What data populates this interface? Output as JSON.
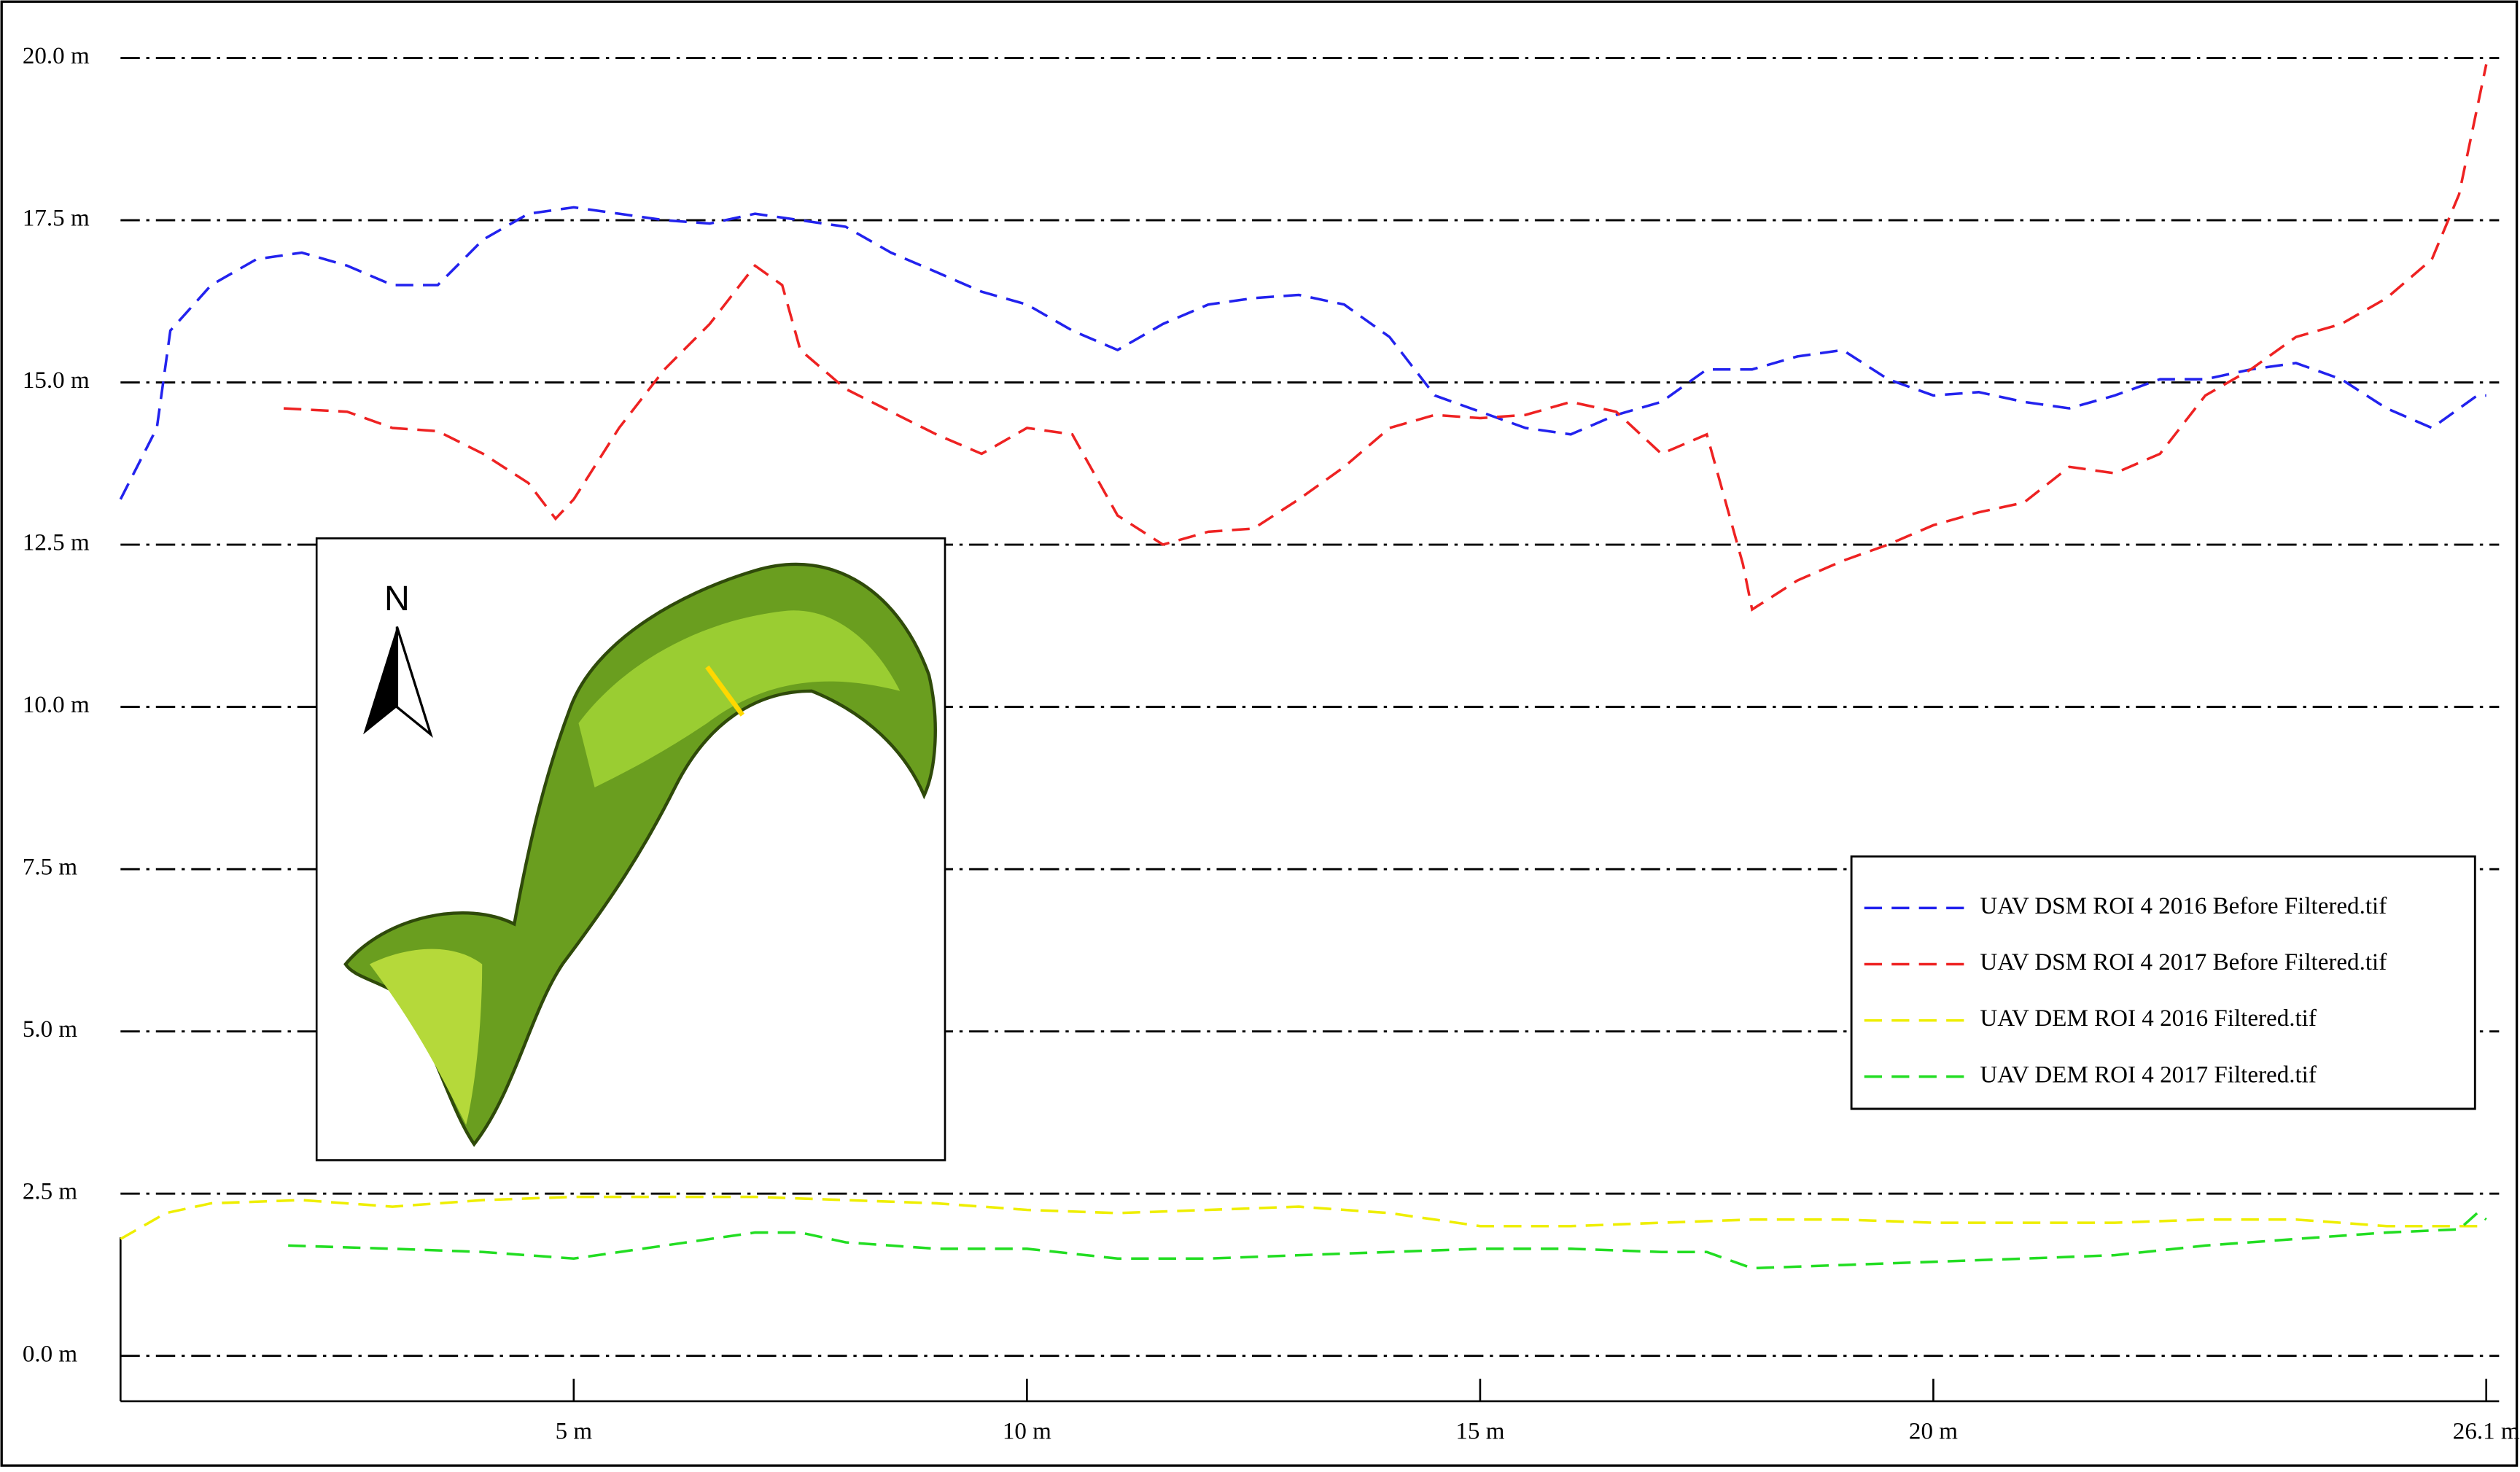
{
  "chart_data": {
    "type": "line",
    "xlim": [
      0,
      26.1
    ],
    "ylim": [
      -0.7,
      20.2
    ],
    "xticks": [
      {
        "value": 5,
        "label": "5 m"
      },
      {
        "value": 10,
        "label": "10 m"
      },
      {
        "value": 15,
        "label": "15 m"
      },
      {
        "value": 20,
        "label": "20 m"
      },
      {
        "value": 26.1,
        "label": "26.1 m"
      }
    ],
    "yticks": [
      {
        "value": 0,
        "label": "0.0 m"
      },
      {
        "value": 2.5,
        "label": "2.5 m"
      },
      {
        "value": 5,
        "label": "5.0 m"
      },
      {
        "value": 7.5,
        "label": "7.5 m"
      },
      {
        "value": 10,
        "label": "10.0 m"
      },
      {
        "value": 12.5,
        "label": "12.5 m"
      },
      {
        "value": 15,
        "label": "15.0 m"
      },
      {
        "value": 17.5,
        "label": "17.5 m"
      },
      {
        "value": 20,
        "label": "20.0 m"
      }
    ],
    "grid": true,
    "line_style": "dashed",
    "legend": "center right",
    "annotations": [
      "N"
    ],
    "series": [
      {
        "name": "UAV DSM ROI 4 2016 Before Filtered.tif",
        "color": "#2222ee",
        "x": [
          0,
          0.4,
          0.55,
          1,
          1.5,
          2,
          2.5,
          3,
          3.5,
          4,
          4.5,
          5,
          5.5,
          6,
          6.5,
          7,
          7.5,
          8,
          8.5,
          9,
          9.5,
          10,
          10.5,
          11,
          11.5,
          12,
          12.5,
          13,
          13.5,
          14,
          14.5,
          15,
          15.5,
          16,
          16.5,
          17,
          17.5,
          18,
          18.5,
          19,
          19.5,
          20,
          20.5,
          21,
          21.5,
          22,
          22.5,
          23,
          23.5,
          24,
          24.5,
          25,
          25.5,
          26,
          26.1
        ],
        "values": [
          13.2,
          14.3,
          15.8,
          16.5,
          16.9,
          17.0,
          16.8,
          16.5,
          16.5,
          17.2,
          17.6,
          17.7,
          17.6,
          17.5,
          17.45,
          17.6,
          17.5,
          17.4,
          17.0,
          16.7,
          16.4,
          16.2,
          15.8,
          15.5,
          15.9,
          16.2,
          16.3,
          16.35,
          16.2,
          15.7,
          14.8,
          14.55,
          14.3,
          14.2,
          14.5,
          14.7,
          15.2,
          15.2,
          15.4,
          15.5,
          15.05,
          14.8,
          14.85,
          14.7,
          14.6,
          14.8,
          15.05,
          15.05,
          15.2,
          15.3,
          15.05,
          14.6,
          14.3,
          14.8,
          14.8
        ]
      },
      {
        "name": "UAV DSM ROI 4 2017 Before Filtered.tif",
        "color": "#ee2222",
        "x": [
          1.8,
          2.5,
          3,
          3.5,
          4,
          4.5,
          4.8,
          5,
          5.5,
          6,
          6.5,
          7,
          7.3,
          7.5,
          8,
          8.5,
          9,
          9.5,
          10,
          10.5,
          11,
          11.5,
          12,
          12.5,
          13,
          13.5,
          14,
          14.5,
          15,
          15.5,
          16,
          16.5,
          17,
          17.5,
          17.9,
          18,
          18.5,
          19,
          19.5,
          20,
          20.5,
          21,
          21.5,
          22,
          22.5,
          23,
          23.5,
          24,
          24.5,
          25,
          25.5,
          25.8,
          26.1
        ],
        "values": [
          14.6,
          14.55,
          14.3,
          14.25,
          13.9,
          13.45,
          12.9,
          13.2,
          14.3,
          15.2,
          15.9,
          16.8,
          16.5,
          15.5,
          14.9,
          14.55,
          14.2,
          13.9,
          14.3,
          14.2,
          12.95,
          12.5,
          12.7,
          12.75,
          13.2,
          13.7,
          14.3,
          14.5,
          14.45,
          14.5,
          14.7,
          14.55,
          13.9,
          14.2,
          12.2,
          11.5,
          11.95,
          12.25,
          12.5,
          12.8,
          13.0,
          13.15,
          13.7,
          13.6,
          13.9,
          14.8,
          15.2,
          15.7,
          15.9,
          16.3,
          16.9,
          17.9,
          19.9
        ]
      },
      {
        "name": "UAV DEM ROI 4 2016 Filtered.tif",
        "color": "#eeee00",
        "x": [
          0,
          0.5,
          1,
          2,
          3,
          4,
          5,
          6,
          7,
          8,
          9,
          10,
          11,
          12,
          13,
          14,
          15,
          16,
          17,
          18,
          19,
          20,
          21,
          22,
          23,
          24,
          25,
          26,
          26.1
        ],
        "values": [
          1.8,
          2.2,
          2.35,
          2.4,
          2.3,
          2.4,
          2.45,
          2.45,
          2.45,
          2.4,
          2.35,
          2.25,
          2.2,
          2.25,
          2.3,
          2.2,
          2.0,
          2.0,
          2.05,
          2.1,
          2.1,
          2.05,
          2.05,
          2.05,
          2.1,
          2.1,
          2.0,
          2.0,
          2.0
        ]
      },
      {
        "name": "UAV DEM ROI 4 2017 Filtered.tif",
        "color": "#22dd22",
        "x": [
          1.85,
          3,
          4,
          5,
          6,
          7,
          7.5,
          8,
          9,
          10,
          11,
          12,
          13,
          14,
          15,
          16,
          17,
          17.5,
          18,
          19,
          20,
          21,
          22,
          23,
          24,
          25,
          25.8,
          26,
          26.1
        ],
        "values": [
          1.7,
          1.65,
          1.6,
          1.5,
          1.7,
          1.9,
          1.9,
          1.75,
          1.65,
          1.65,
          1.5,
          1.5,
          1.55,
          1.6,
          1.65,
          1.65,
          1.6,
          1.6,
          1.35,
          1.4,
          1.45,
          1.5,
          1.55,
          1.7,
          1.8,
          1.9,
          1.95,
          2.2,
          2.1
        ]
      }
    ]
  }
}
